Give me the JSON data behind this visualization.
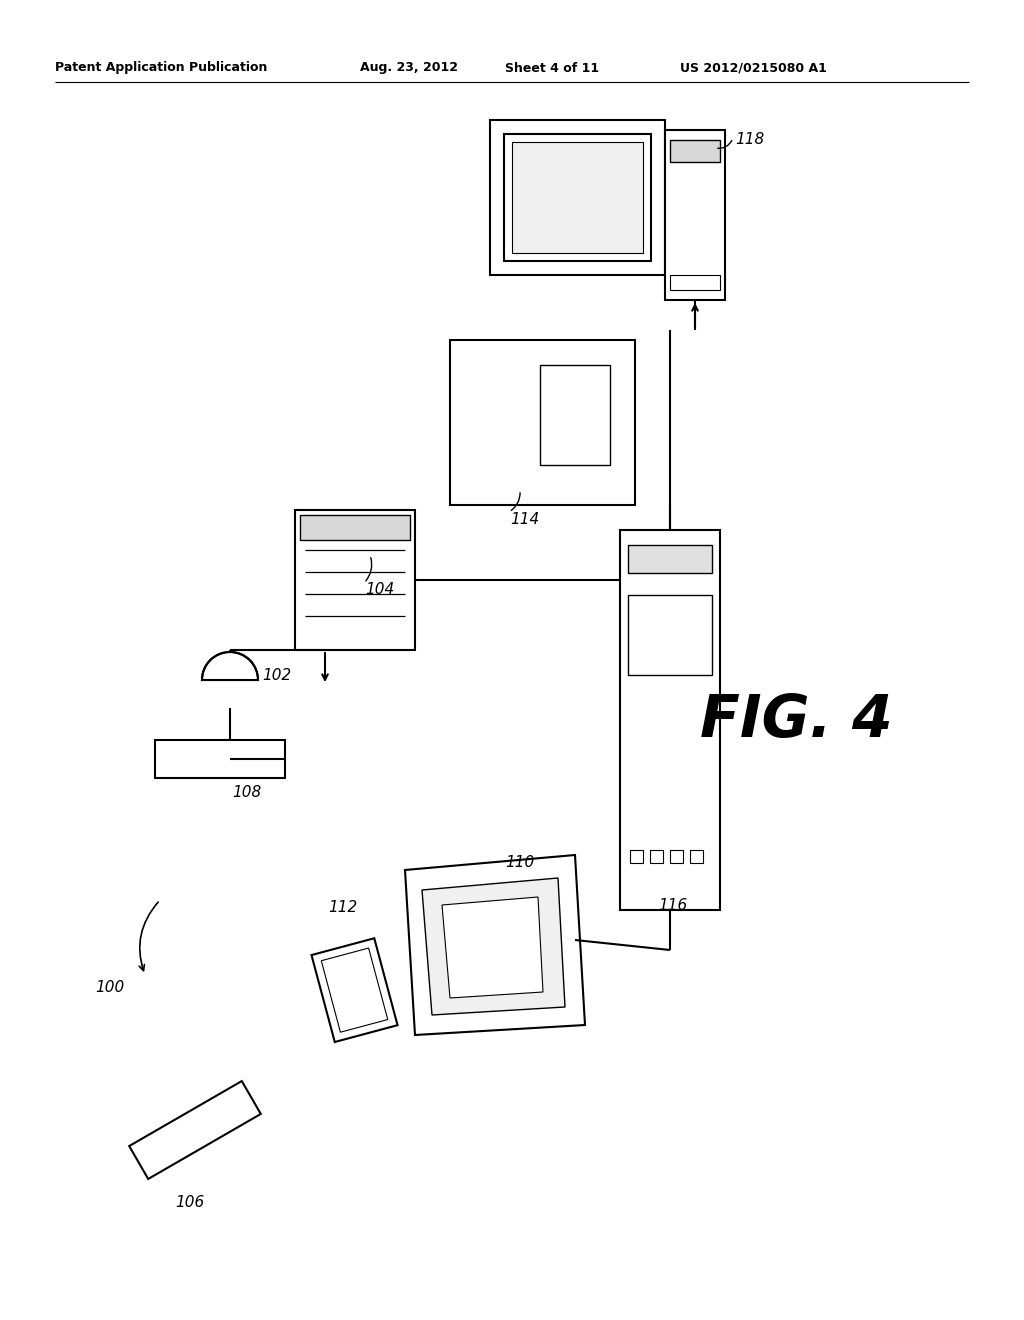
{
  "bg_color": "#ffffff",
  "header_text": "Patent Application Publication",
  "header_date": "Aug. 23, 2012",
  "header_sheet": "Sheet 4 of 11",
  "header_patent": "US 2012/0215080 A1",
  "fig_label": "FIG. 4"
}
